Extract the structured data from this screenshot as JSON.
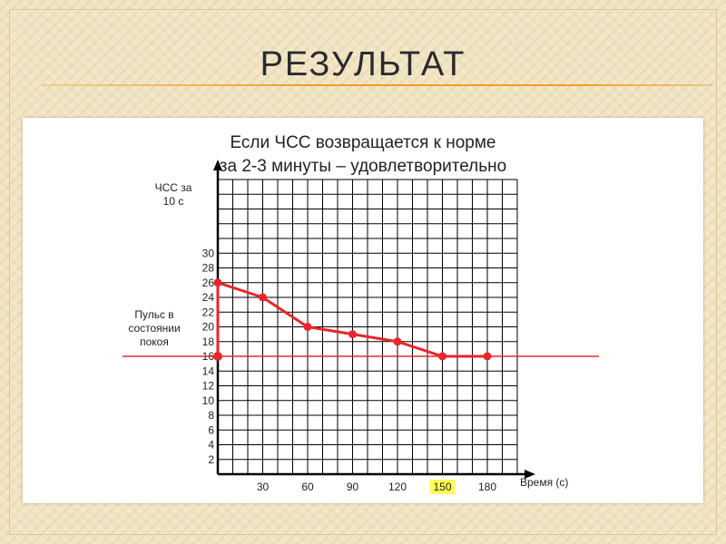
{
  "slide": {
    "title": "РЕЗУЛЬТАТ"
  },
  "chart_data": {
    "type": "line",
    "title_line1": "Если ЧСС возвращается к норме",
    "title_line2": "за 2-3 минуты – удовлетворительно",
    "ylabel": "ЧСС за\n10 с",
    "xlabel": "Время (с)",
    "x": [
      0,
      30,
      60,
      90,
      120,
      150,
      180
    ],
    "series": [
      {
        "values": [
          26,
          24,
          20,
          19,
          18,
          16,
          16
        ]
      }
    ],
    "xticks": [
      "30",
      "60",
      "90",
      "120",
      "150",
      "180"
    ],
    "xtick_values": [
      30,
      60,
      90,
      120,
      150,
      180
    ],
    "highlighted_xtick": "150",
    "yticks": [
      "2",
      "4",
      "6",
      "8",
      "10",
      "12",
      "14",
      "16",
      "18",
      "20",
      "22",
      "24",
      "26",
      "28",
      "30"
    ],
    "ytick_values": [
      2,
      4,
      6,
      8,
      10,
      12,
      14,
      16,
      18,
      20,
      22,
      24,
      26,
      28,
      30
    ],
    "xlim": [
      0,
      200
    ],
    "ylim": [
      0,
      40
    ],
    "grid": true,
    "reference_line": {
      "value": 16,
      "label": "Пульс в\nсостоянии\nпокоя"
    },
    "colors": {
      "series": "#e8262b",
      "reference": "#e8262b",
      "grid": "#000000",
      "highlight": "#ffff55"
    }
  }
}
